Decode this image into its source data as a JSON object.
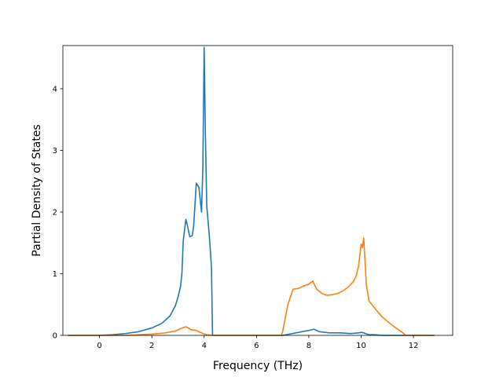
{
  "chart_data": {
    "type": "line",
    "title": "",
    "xlabel": "Frequency (THz)",
    "ylabel": "Partial Density of States",
    "xlim": [
      -1.4,
      13.5
    ],
    "ylim": [
      0,
      4.7
    ],
    "xticks": [
      0,
      2,
      4,
      6,
      8,
      10,
      12
    ],
    "yticks": [
      0,
      1,
      2,
      3,
      4
    ],
    "xtick_labels": [
      "0",
      "2",
      "4",
      "6",
      "8",
      "10",
      "12"
    ],
    "ytick_labels": [
      "0",
      "1",
      "2",
      "3",
      "4"
    ],
    "grid": false,
    "legend": "none",
    "series": [
      {
        "color": "#1f77b4",
        "x": [
          -1.2,
          0.0,
          0.5,
          1.0,
          1.5,
          2.0,
          2.4,
          2.7,
          2.9,
          3.0,
          3.1,
          3.15,
          3.2,
          3.3,
          3.35,
          3.45,
          3.55,
          3.6,
          3.7,
          3.8,
          3.9,
          3.95,
          4.0,
          4.05,
          4.1,
          4.2,
          4.28,
          4.32,
          4.4,
          5.0,
          6.0,
          7.0,
          7.5,
          8.0,
          8.2,
          8.4,
          8.8,
          9.2,
          9.6,
          9.9,
          10.0,
          10.1,
          10.3,
          10.5,
          10.8,
          11.0,
          11.5,
          12.8
        ],
        "y": [
          0.0,
          0.0,
          0.01,
          0.03,
          0.06,
          0.12,
          0.2,
          0.32,
          0.48,
          0.62,
          0.8,
          1.0,
          1.53,
          1.88,
          1.8,
          1.6,
          1.62,
          1.78,
          2.47,
          2.4,
          2.0,
          2.7,
          4.67,
          3.2,
          2.1,
          1.6,
          1.1,
          0.0,
          0.0,
          0.0,
          0.0,
          0.0,
          0.04,
          0.08,
          0.1,
          0.06,
          0.04,
          0.04,
          0.03,
          0.04,
          0.05,
          0.04,
          0.01,
          0.01,
          0.0,
          0.0,
          0.0,
          0.0
        ]
      },
      {
        "color": "#ff7f0e",
        "x": [
          -1.2,
          0.0,
          1.0,
          2.0,
          2.5,
          2.9,
          3.1,
          3.3,
          3.4,
          3.5,
          3.7,
          3.9,
          4.1,
          4.3,
          5.0,
          6.0,
          6.95,
          7.0,
          7.1,
          7.2,
          7.4,
          7.6,
          7.8,
          8.0,
          8.15,
          8.3,
          8.5,
          8.7,
          8.9,
          9.1,
          9.3,
          9.5,
          9.7,
          9.8,
          9.9,
          9.95,
          10.0,
          10.05,
          10.1,
          10.15,
          10.2,
          10.3,
          10.5,
          10.8,
          11.0,
          11.2,
          11.4,
          11.6,
          11.7,
          12.8
        ],
        "y": [
          0.0,
          0.0,
          0.0,
          0.02,
          0.04,
          0.07,
          0.11,
          0.14,
          0.12,
          0.09,
          0.08,
          0.04,
          0.01,
          0.0,
          0.0,
          0.0,
          0.0,
          0.06,
          0.28,
          0.5,
          0.75,
          0.76,
          0.8,
          0.83,
          0.88,
          0.75,
          0.68,
          0.65,
          0.66,
          0.68,
          0.72,
          0.78,
          0.87,
          0.95,
          1.12,
          1.3,
          1.48,
          1.42,
          1.58,
          1.2,
          0.82,
          0.56,
          0.45,
          0.3,
          0.23,
          0.16,
          0.1,
          0.04,
          0.0,
          0.0
        ]
      }
    ]
  }
}
